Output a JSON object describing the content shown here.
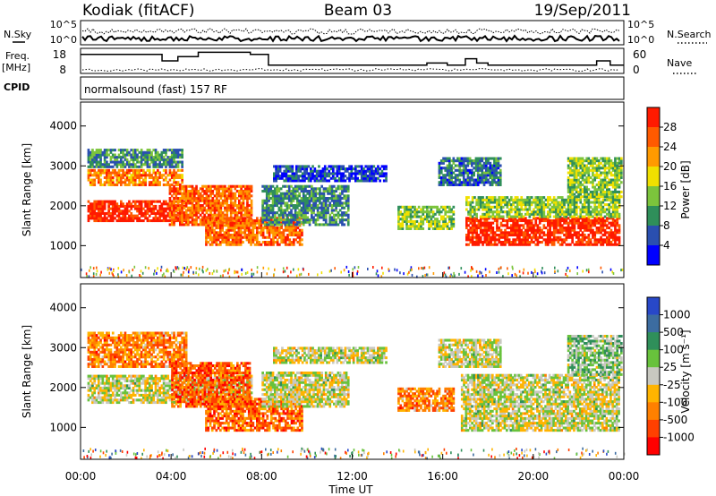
{
  "header": {
    "station": "Kodiak (fitACF)",
    "beam": "Beam 03",
    "date": "19/Sep/2011"
  },
  "noise_panel": {
    "left_label": "N.Sky",
    "right_label": "N.Search",
    "left_ticks": [
      "10^5",
      "10^0"
    ],
    "right_ticks": [
      "10^5",
      "10^0"
    ]
  },
  "freq_panel": {
    "left_label_line1": "Freq.",
    "left_label_line2": "[MHz]",
    "left_ticks": [
      "18",
      "8"
    ],
    "right_label": "Nave",
    "right_ticks": [
      "60",
      "0"
    ]
  },
  "cpid": {
    "label": "CPID",
    "value": "normalsound (fast) 157 RF"
  },
  "chart_data": [
    {
      "type": "heatmap",
      "quantity": "power",
      "ylabel": "Slant Range [km]",
      "xlabel": "Time UT",
      "x_ticks": [
        "00:00",
        "04:00",
        "08:00",
        "12:00",
        "16:00",
        "20:00",
        "00:00"
      ],
      "y_ticks": [
        "1000",
        "2000",
        "3000",
        "4000"
      ],
      "ylim": [
        200,
        4600
      ],
      "colorbar_label": "Power [dB]",
      "colorbar_ticks": [
        "4",
        "8",
        "12",
        "16",
        "20",
        "24",
        "28"
      ],
      "colors": [
        "#0000ff",
        "#2a4fb0",
        "#2f8f5a",
        "#7cc43c",
        "#f0e000",
        "#ff9a00",
        "#ff5a00",
        "#ff1a00"
      ],
      "regions": [
        {
          "t0": 0.3,
          "t1": 4.7,
          "r0": 1600,
          "r1": 2100,
          "level": 0.95
        },
        {
          "t0": 0.3,
          "t1": 4.5,
          "r0": 2500,
          "r1": 2900,
          "level": 0.75
        },
        {
          "t0": 0.3,
          "t1": 4.5,
          "r0": 2950,
          "r1": 3400,
          "level": 0.3
        },
        {
          "t0": 3.9,
          "t1": 7.5,
          "r0": 1500,
          "r1": 2500,
          "level": 0.8
        },
        {
          "t0": 5.5,
          "t1": 9.8,
          "r0": 1000,
          "r1": 1700,
          "level": 0.8
        },
        {
          "t0": 8.0,
          "t1": 11.8,
          "r0": 1500,
          "r1": 2500,
          "level": 0.3
        },
        {
          "t0": 8.5,
          "t1": 13.5,
          "r0": 2600,
          "r1": 3000,
          "level": 0.15
        },
        {
          "t0": 14.0,
          "t1": 16.5,
          "r0": 1400,
          "r1": 2000,
          "level": 0.45
        },
        {
          "t0": 15.8,
          "t1": 18.5,
          "r0": 2500,
          "r1": 3200,
          "level": 0.25
        },
        {
          "t0": 17.0,
          "t1": 23.8,
          "r0": 1000,
          "r1": 1700,
          "level": 0.95
        },
        {
          "t0": 17.0,
          "t1": 23.8,
          "r0": 1700,
          "r1": 2200,
          "level": 0.45
        },
        {
          "t0": 21.5,
          "t1": 23.9,
          "r0": 2200,
          "r1": 3200,
          "level": 0.45
        }
      ]
    },
    {
      "type": "heatmap",
      "quantity": "velocity",
      "ylabel": "Slant Range [km]",
      "xlabel": "Time UT",
      "x_ticks": [
        "00:00",
        "04:00",
        "08:00",
        "12:00",
        "16:00",
        "20:00",
        "00:00"
      ],
      "y_ticks": [
        "1000",
        "2000",
        "3000",
        "4000"
      ],
      "ylim": [
        200,
        4600
      ],
      "colorbar_label": "Velocity [m s⁻¹]",
      "colorbar_ticks": [
        "1000",
        "500",
        "100",
        "25",
        "-25",
        "-100",
        "-500",
        "-1000"
      ],
      "colors": [
        "#2848c8",
        "#3c6ca0",
        "#2f8f5a",
        "#68c23c",
        "#c8c8c0",
        "#ffb400",
        "#ff8000",
        "#ff4000",
        "#ff0000"
      ],
      "regions": [
        {
          "t0": 0.3,
          "t1": 4.7,
          "r0": 2500,
          "r1": 3400,
          "level": 0.72
        },
        {
          "t0": 0.3,
          "t1": 7.5,
          "r0": 1600,
          "r1": 2300,
          "level": 0.5
        },
        {
          "t0": 4.0,
          "t1": 7.5,
          "r0": 1500,
          "r1": 2600,
          "level": 0.8
        },
        {
          "t0": 5.5,
          "t1": 9.8,
          "r0": 900,
          "r1": 1700,
          "level": 0.78
        },
        {
          "t0": 8.0,
          "t1": 11.8,
          "r0": 1500,
          "r1": 2400,
          "level": 0.5
        },
        {
          "t0": 8.5,
          "t1": 13.5,
          "r0": 2600,
          "r1": 3000,
          "level": 0.5
        },
        {
          "t0": 14.0,
          "t1": 16.5,
          "r0": 1400,
          "r1": 2000,
          "level": 0.72
        },
        {
          "t0": 15.8,
          "t1": 18.5,
          "r0": 2500,
          "r1": 3200,
          "level": 0.5
        },
        {
          "t0": 16.8,
          "t1": 23.8,
          "r0": 900,
          "r1": 2300,
          "level": 0.5
        },
        {
          "t0": 21.5,
          "t1": 23.9,
          "r0": 2300,
          "r1": 3300,
          "level": 0.4
        }
      ]
    }
  ]
}
